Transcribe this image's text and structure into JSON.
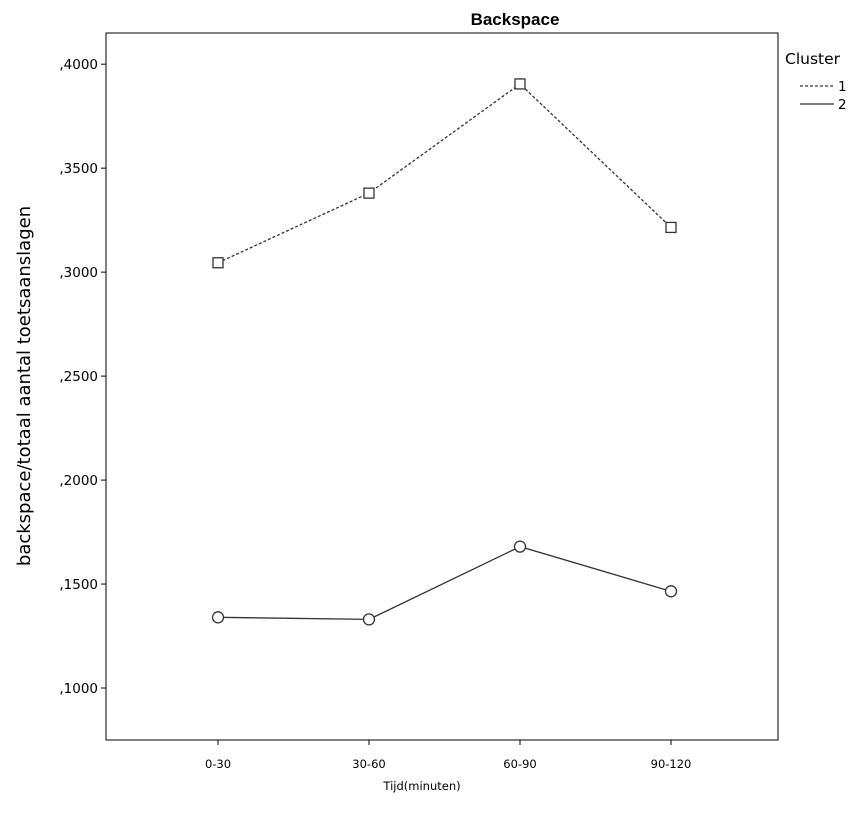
{
  "chart_data": {
    "type": "line",
    "title": "Backspace",
    "xlabel": "Tijd(minuten)",
    "ylabel": "backspace/totaal aantal toetsaanslagen",
    "categories": [
      "0-30",
      "30-60",
      "60-90",
      "90-120"
    ],
    "ylim": [
      0.075,
      0.415
    ],
    "yticks": [
      0.1,
      0.15,
      0.2,
      0.25,
      0.3,
      0.35,
      0.4
    ],
    "ytick_labels": [
      ",1000",
      ",1500",
      ",2000",
      ",2500",
      ",3000",
      ",3500",
      ",4000"
    ],
    "grid": false,
    "legend": {
      "title": "Cluster",
      "placement": "right"
    },
    "series": [
      {
        "name": "1",
        "values": [
          0.3045,
          0.338,
          0.3905,
          0.3215
        ],
        "line_style": "dashed",
        "marker": "square",
        "color": "#333333"
      },
      {
        "name": "2",
        "values": [
          0.134,
          0.133,
          0.168,
          0.1465
        ],
        "line_style": "solid",
        "marker": "circle",
        "color": "#333333"
      }
    ]
  }
}
